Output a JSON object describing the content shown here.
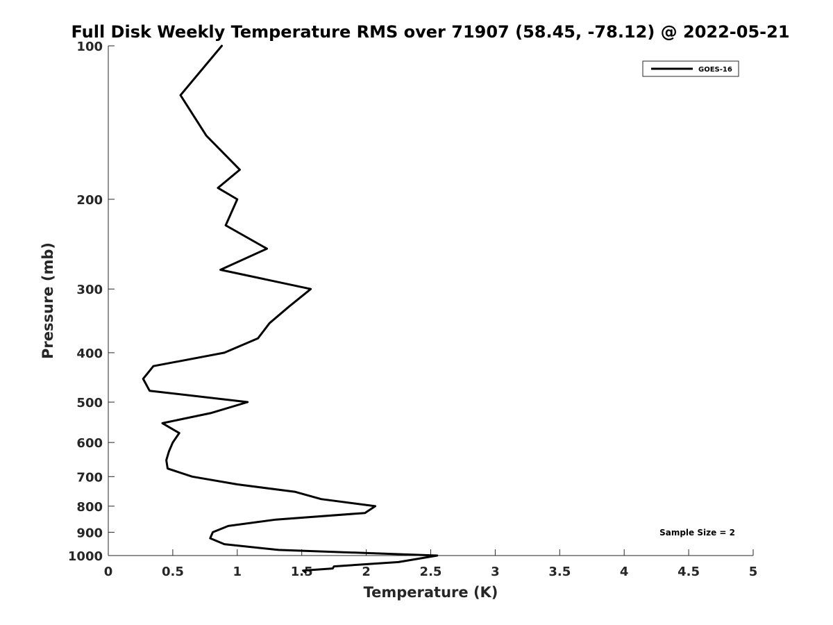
{
  "chart_data": {
    "type": "line",
    "title": "Full Disk Weekly Temperature RMS over 71907 (58.45, -78.12) @ 2022-05-21",
    "xlabel": "Temperature (K)",
    "ylabel": "Pressure (mb)",
    "xlim": [
      0,
      5
    ],
    "ylim": [
      100,
      1000
    ],
    "y_scale": "log",
    "y_reversed": true,
    "x_ticks": [
      "0",
      "0.5",
      "1",
      "1.5",
      "2",
      "2.5",
      "3",
      "3.5",
      "4",
      "4.5",
      "5"
    ],
    "y_ticks": [
      "100",
      "200",
      "300",
      "400",
      "500",
      "600",
      "700",
      "800",
      "900",
      "1000"
    ],
    "grid": false,
    "legend_position": "top-right",
    "series": [
      {
        "name": "GOES-16",
        "color": "#000000",
        "x": [
          0.88,
          0.56,
          0.76,
          1.02,
          0.85,
          1.0,
          0.91,
          1.23,
          0.87,
          1.57,
          1.4,
          1.25,
          1.16,
          0.9,
          0.35,
          0.27,
          0.32,
          1.08,
          0.8,
          0.42,
          0.55,
          0.5,
          0.47,
          0.45,
          0.46,
          0.65,
          1.0,
          1.45,
          1.65,
          2.07,
          1.99,
          1.3,
          0.93,
          0.81,
          0.79,
          0.9,
          1.32,
          2.55,
          2.25,
          1.75,
          1.74,
          1.51,
          1.53
        ],
        "y": [
          100,
          125,
          150,
          175,
          190,
          200,
          225,
          250,
          275,
          300,
          325,
          350,
          375,
          400,
          425,
          450,
          475,
          500,
          525,
          550,
          575,
          600,
          625,
          650,
          675,
          700,
          725,
          750,
          775,
          800,
          825,
          850,
          875,
          900,
          925,
          950,
          975,
          1000,
          1030,
          1050,
          1060,
          1070,
          1080
        ]
      }
    ],
    "annotations": [
      "Sample Size = 2"
    ]
  }
}
